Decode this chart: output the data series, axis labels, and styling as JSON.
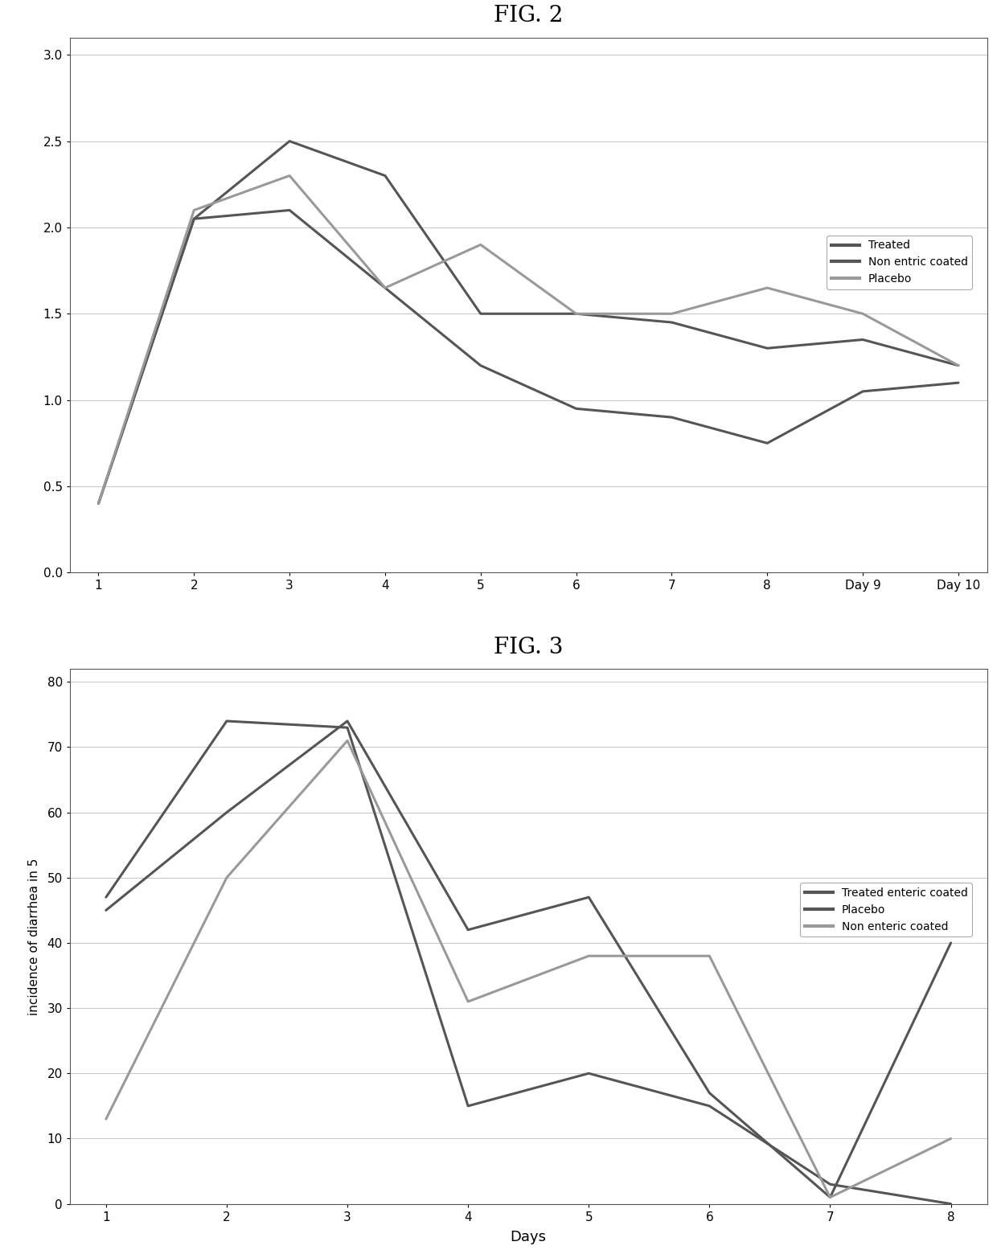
{
  "fig2_title": "FIG. 2",
  "fig3_title": "FIG. 3",
  "fig2_x": [
    1,
    2,
    3,
    4,
    5,
    6,
    7,
    8,
    9,
    10
  ],
  "fig2_x_labels": [
    "1",
    "2",
    "3",
    "4",
    "5",
    "6",
    "7",
    "8",
    "Day 9",
    "Day 10"
  ],
  "fig2_ylim": [
    0,
    3.1
  ],
  "fig2_yticks": [
    0,
    0.5,
    1.0,
    1.5,
    2.0,
    2.5,
    3.0
  ],
  "fig2_treated": [
    0.4,
    2.05,
    2.1,
    1.65,
    1.2,
    0.95,
    0.9,
    0.75,
    1.05,
    1.1
  ],
  "fig2_non_enteric": [
    0.4,
    2.05,
    2.5,
    2.3,
    1.5,
    1.5,
    1.45,
    1.3,
    1.35,
    1.2
  ],
  "fig2_placebo": [
    0.4,
    2.1,
    2.3,
    1.65,
    1.9,
    1.5,
    1.5,
    1.65,
    1.5,
    1.2
  ],
  "fig2_legend": [
    "Treated",
    "Non entric coated",
    "Placebo"
  ],
  "fig3_x": [
    1,
    2,
    3,
    4,
    5,
    6,
    7,
    8
  ],
  "fig3_x_labels": [
    "1",
    "2",
    "3",
    "4",
    "5",
    "6",
    "7",
    "8"
  ],
  "fig3_ylim": [
    0,
    82
  ],
  "fig3_yticks": [
    0,
    10,
    20,
    30,
    40,
    50,
    60,
    70,
    80
  ],
  "fig3_ylabel": "incidence of diarrhea in 5",
  "fig3_xlabel": "Days",
  "fig3_treated_enteric": [
    45,
    60,
    74,
    42,
    47,
    17,
    1,
    40
  ],
  "fig3_placebo": [
    47,
    74,
    73,
    15,
    20,
    15,
    3,
    0
  ],
  "fig3_non_enteric": [
    13,
    50,
    71,
    31,
    38,
    38,
    1,
    10
  ],
  "fig3_legend": [
    "Treated enteric coated",
    "Placebo",
    "Non enteric coated"
  ],
  "bg_color": "#ffffff",
  "grid_color": "#bbbbbb",
  "dark_line": "#555555",
  "mid_line": "#777777",
  "light_line": "#999999"
}
